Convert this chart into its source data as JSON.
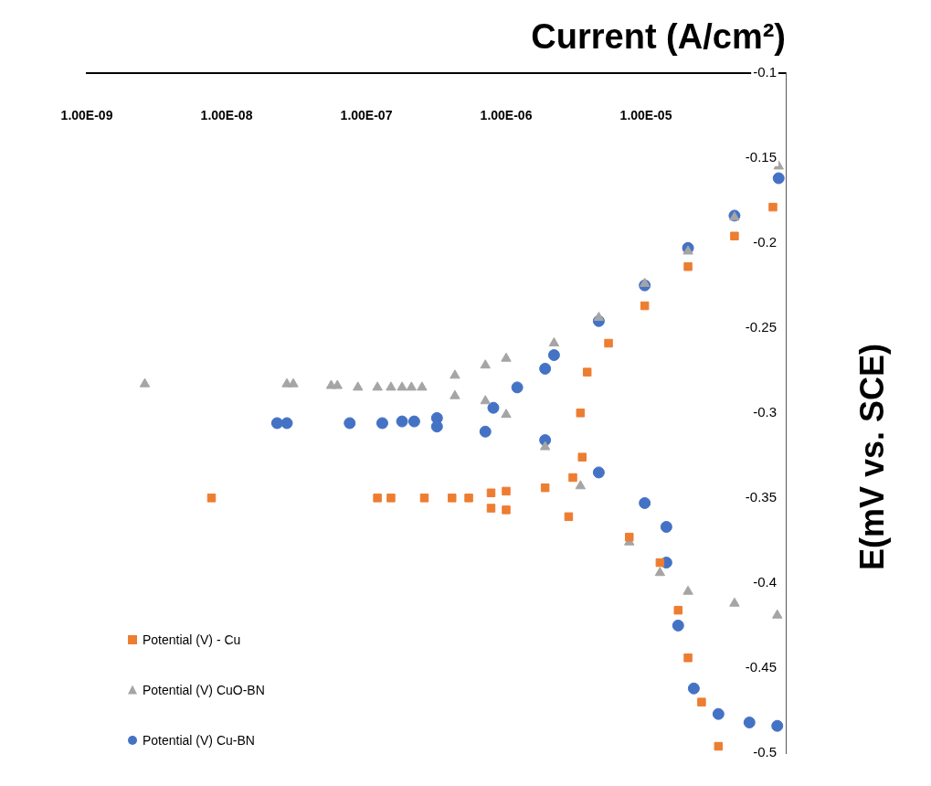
{
  "chart_data": {
    "type": "scatter",
    "xlabel": "Current (A/cm²)",
    "ylabel": "E(mV vs. SCE)",
    "log": "x",
    "xlim": [
      1e-09,
      0.0001
    ],
    "xticks": [
      {
        "value": 1e-09,
        "label": "1.00E-09"
      },
      {
        "value": 1e-08,
        "label": "1.00E-08"
      },
      {
        "value": 1e-07,
        "label": "1.00E-07"
      },
      {
        "value": 1e-06,
        "label": "1.00E-06"
      },
      {
        "value": 1e-05,
        "label": "1.00E-05"
      },
      {
        "value": 0.0001,
        "label": null
      }
    ],
    "ylim": [
      -0.5,
      -0.1
    ],
    "yticks": [
      -0.5,
      -0.45,
      -0.4,
      -0.35,
      -0.3,
      -0.25,
      -0.2,
      -0.15,
      -0.1
    ],
    "grid": false,
    "legend": "bottom left",
    "series": [
      {
        "name": "Potential (V) - Cu",
        "color": "#ed7d31",
        "marker": "square",
        "x": [
          7.8e-09,
          1.2e-07,
          1.5e-07,
          2.6e-07,
          4.1e-07,
          5.4e-07,
          7.8e-07,
          1e-06,
          1.9e-06,
          3e-06,
          3.5e-06,
          3.4e-06,
          3.8e-06,
          5.4e-06,
          9.8e-06,
          2e-05,
          4.3e-05,
          8.1e-05,
          7.8e-07,
          1e-06,
          2.8e-06,
          7.6e-06,
          1.26e-05,
          1.7e-05,
          2e-05,
          2.5e-05,
          3.3e-05
        ],
        "values": [
          -0.35,
          -0.35,
          -0.35,
          -0.35,
          -0.35,
          -0.35,
          -0.347,
          -0.346,
          -0.344,
          -0.338,
          -0.326,
          -0.3,
          -0.276,
          -0.259,
          -0.237,
          -0.214,
          -0.196,
          -0.179,
          -0.356,
          -0.357,
          -0.361,
          -0.373,
          -0.388,
          -0.416,
          -0.444,
          -0.47,
          -0.496
        ]
      },
      {
        "name": "Potential (V) CuO-BN",
        "color": "#a5a5a5",
        "marker": "triangle",
        "x": [
          2.6e-09,
          2.7e-08,
          3e-08,
          5.6e-08,
          6.2e-08,
          8.7e-08,
          1.2e-07,
          1.5e-07,
          1.8e-07,
          2.1e-07,
          2.5e-07,
          4.3e-07,
          7.1e-07,
          1e-06,
          2.2e-06,
          4.6e-06,
          9.8e-06,
          2e-05,
          4.3e-05,
          8.9e-05,
          4.3e-07,
          7.1e-07,
          1e-06,
          1.9e-06,
          3.4e-06,
          7.6e-06,
          1.26e-05,
          2e-05,
          4.3e-05,
          8.7e-05
        ],
        "values": [
          -0.283,
          -0.283,
          -0.283,
          -0.284,
          -0.284,
          -0.285,
          -0.285,
          -0.285,
          -0.285,
          -0.285,
          -0.285,
          -0.278,
          -0.272,
          -0.268,
          -0.259,
          -0.244,
          -0.224,
          -0.205,
          -0.185,
          -0.155,
          -0.29,
          -0.293,
          -0.301,
          -0.32,
          -0.343,
          -0.376,
          -0.394,
          -0.405,
          -0.412,
          -0.419
        ]
      },
      {
        "name": "Potential (V) Cu-BN",
        "color": "#4472c4",
        "marker": "circle",
        "x": [
          2.3e-08,
          2.7e-08,
          7.6e-08,
          1.3e-07,
          1.8e-07,
          2.2e-07,
          3.2e-07,
          8.1e-07,
          1.2e-06,
          1.9e-06,
          2.2e-06,
          4.6e-06,
          9.8e-06,
          2e-05,
          4.3e-05,
          8.9e-05,
          3.2e-07,
          7.1e-07,
          1.9e-06,
          4.6e-06,
          9.8e-06,
          1.4e-05,
          1.4e-05,
          1.7e-05,
          2.2e-05,
          3.3e-05,
          5.5e-05,
          8.7e-05
        ],
        "values": [
          -0.306,
          -0.306,
          -0.306,
          -0.306,
          -0.305,
          -0.305,
          -0.303,
          -0.297,
          -0.285,
          -0.274,
          -0.266,
          -0.246,
          -0.225,
          -0.203,
          -0.184,
          -0.162,
          -0.308,
          -0.311,
          -0.316,
          -0.335,
          -0.353,
          -0.367,
          -0.388,
          -0.425,
          -0.462,
          -0.477,
          -0.482,
          -0.484
        ]
      }
    ]
  }
}
